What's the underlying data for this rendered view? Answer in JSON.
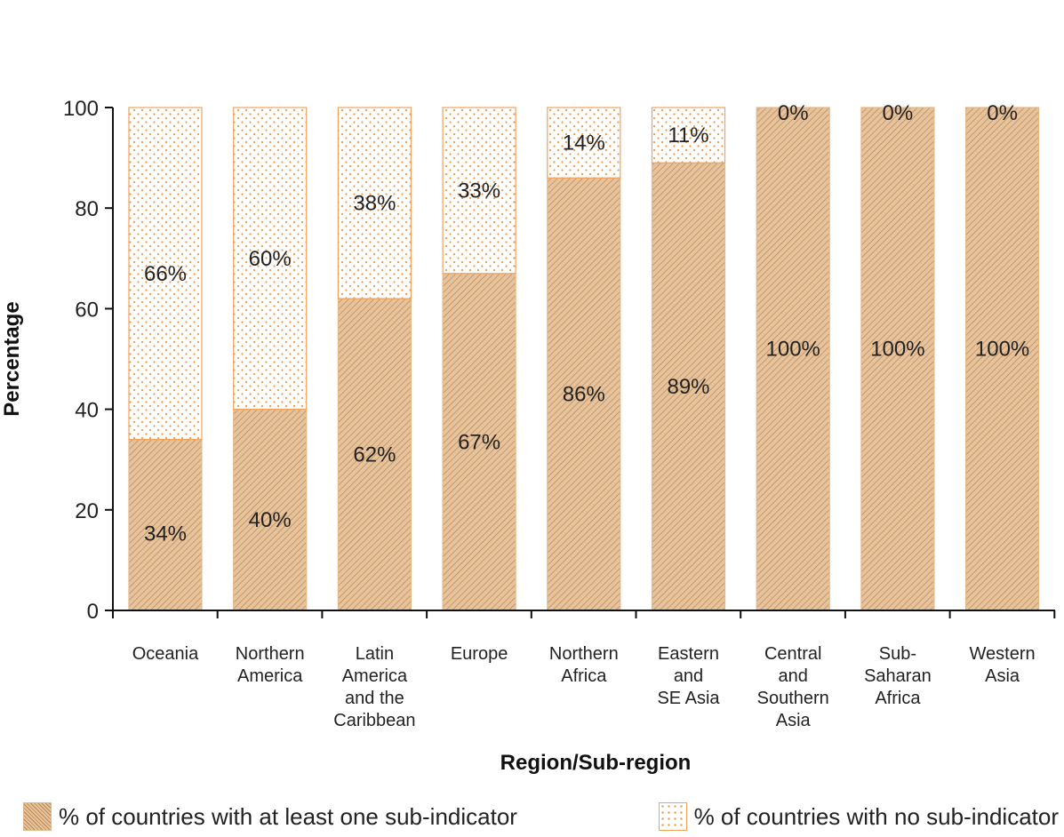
{
  "chart_data": {
    "type": "bar",
    "stacked": true,
    "categories": [
      "Oceania",
      "Northern\nAmerica",
      "Latin\nAmerica\nand the\nCaribbean",
      "Europe",
      "Northern\nAfrica",
      "Eastern\nand\nSE Asia",
      "Central\nand\nSouthern\nAsia",
      "Sub-\nSaharan\nAfrica",
      "Western\nAsia"
    ],
    "series": [
      {
        "name": "% of countries with at least one sub-indicator",
        "values": [
          34,
          40,
          62,
          67,
          86,
          89,
          100,
          100,
          100
        ],
        "labels": [
          "34%",
          "40%",
          "62%",
          "67%",
          "86%",
          "89%",
          "100%",
          "100%",
          "100%"
        ],
        "color": "#e4b98a"
      },
      {
        "name": "% of countries with no sub-indicator",
        "values": [
          66,
          60,
          38,
          33,
          14,
          11,
          0,
          0,
          0
        ],
        "labels": [
          "66%",
          "60%",
          "38%",
          "33%",
          "14%",
          "11%",
          "0%",
          "0%",
          "0%"
        ],
        "color": "#f2a25a"
      }
    ],
    "xlabel": "Region/Sub-region",
    "ylabel": "Percentage",
    "ylim": [
      0,
      100
    ],
    "yticks": [
      0,
      20,
      40,
      60,
      80,
      100
    ],
    "grid": false,
    "legend_position": "bottom"
  }
}
